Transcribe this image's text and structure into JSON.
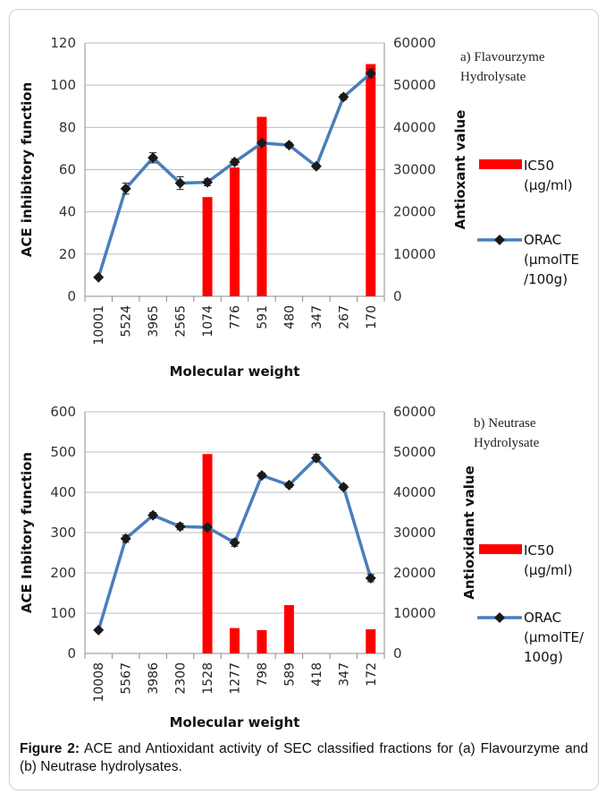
{
  "chart_data": [
    {
      "type": "bar",
      "annotation": [
        "a) Flavourzyme",
        "Hydrolysate"
      ],
      "categories": [
        "10001",
        "5524",
        "3965",
        "2565",
        "1074",
        "776",
        "591",
        "480",
        "347",
        "267",
        "170"
      ],
      "xlabel": "Molecular weight",
      "ylabel_left": "ACE inhibitory function",
      "ylabel_right": "Antioxant value",
      "ylim_left": [
        0,
        120
      ],
      "yticks_left": [
        0,
        20,
        40,
        60,
        80,
        100,
        120
      ],
      "ylim_right": [
        0,
        60000
      ],
      "yticks_right": [
        0,
        10000,
        20000,
        30000,
        40000,
        50000,
        60000
      ],
      "series": [
        {
          "name": "IC50 (µg/ml)",
          "legend_lines": [
            "IC50",
            "(µg/ml)"
          ],
          "type": "bar",
          "axis": "left",
          "color": "#ff0000",
          "values": [
            null,
            null,
            null,
            null,
            47,
            61,
            85,
            null,
            null,
            null,
            110
          ]
        },
        {
          "name": "ORAC (µmolTE/100g)",
          "legend_lines": [
            "ORAC",
            "(µmolTE",
            "/100g)"
          ],
          "type": "line",
          "axis": "right",
          "color": "#4a7ebb",
          "values": [
            4500,
            25500,
            32800,
            26800,
            27000,
            31800,
            36300,
            35800,
            30800,
            47200,
            52800
          ],
          "errors": [
            0,
            1300,
            1200,
            1500,
            800,
            700,
            600,
            600,
            500,
            600,
            1000
          ]
        }
      ],
      "grid": "horizontal"
    },
    {
      "type": "bar",
      "annotation": [
        "b) Neutrase",
        "Hydrolysate"
      ],
      "categories": [
        "10008",
        "5567",
        "3986",
        "2300",
        "1528",
        "1277",
        "798",
        "589",
        "418",
        "347",
        "172"
      ],
      "xlabel": "Molecular weight",
      "ylabel_left": "ACE Inbitory function",
      "ylabel_right": "Antioxidant value",
      "ylim_left": [
        0,
        600
      ],
      "yticks_left": [
        0,
        100,
        200,
        300,
        400,
        500,
        600
      ],
      "ylim_right": [
        0,
        60000
      ],
      "yticks_right": [
        0,
        10000,
        20000,
        30000,
        40000,
        50000,
        60000
      ],
      "series": [
        {
          "name": "IC50 (µg/ml)",
          "legend_lines": [
            "IC50",
            "(µg/ml)"
          ],
          "type": "bar",
          "axis": "left",
          "color": "#ff0000",
          "values": [
            null,
            null,
            null,
            null,
            495,
            63,
            58,
            120,
            null,
            null,
            60
          ]
        },
        {
          "name": "ORAC (µmolTE/100g)",
          "legend_lines": [
            "ORAC",
            "(µmolTE/",
            "100g)"
          ],
          "type": "line",
          "axis": "right",
          "color": "#4a7ebb",
          "values": [
            5800,
            28500,
            34300,
            31500,
            31300,
            27500,
            44200,
            41800,
            48500,
            41300,
            18700
          ],
          "errors": [
            0,
            900,
            700,
            800,
            700,
            900,
            600,
            600,
            900,
            600,
            900
          ]
        }
      ],
      "grid": "horizontal"
    }
  ],
  "caption": {
    "label": "Figure 2:",
    "text": " ACE and Antioxidant activity of SEC classified fractions for (a) Flavourzyme and (b) Neutrase hydrolysates."
  }
}
